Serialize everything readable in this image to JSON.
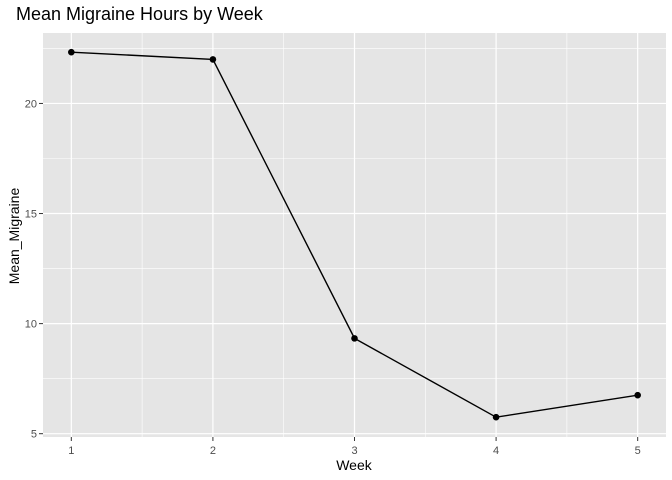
{
  "chart_data": {
    "type": "line",
    "title": "Mean Migraine Hours by Week",
    "xlabel": "Week",
    "ylabel": "Mean_Migraine",
    "x": [
      1,
      2,
      3,
      4,
      5
    ],
    "series": [
      {
        "values": [
          22.33,
          22.0,
          9.33,
          5.75,
          6.75
        ]
      }
    ],
    "x_ticks": [
      "1",
      "2",
      "3",
      "4",
      "5"
    ],
    "y_ticks": [
      "5",
      "10",
      "15",
      "20"
    ],
    "xlim": [
      0.8,
      5.2
    ],
    "ylim": [
      4.85,
      23.2
    ],
    "grid": true,
    "colors": {
      "panel": "#e5e5e5",
      "grid": "#ffffff",
      "line": "#000000",
      "tick_text": "#4d4d4d"
    }
  }
}
